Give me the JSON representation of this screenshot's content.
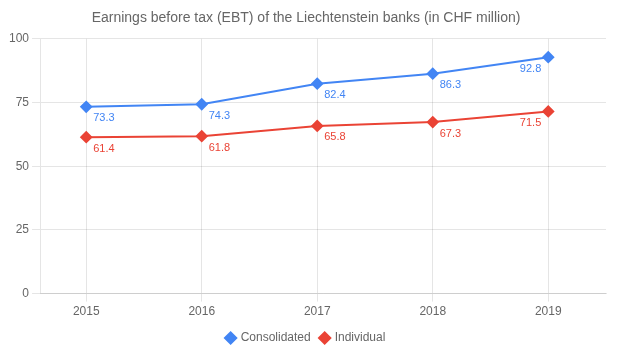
{
  "chart_data": {
    "type": "line",
    "title": "Earnings before tax (EBT) of the Liechtenstein banks (in CHF million)",
    "x": [
      2015,
      2016,
      2017,
      2018,
      2019
    ],
    "series": [
      {
        "name": "Consolidated",
        "color": "#4285F4",
        "values": [
          73.3,
          74.3,
          82.4,
          86.3,
          92.8
        ]
      },
      {
        "name": "Individual",
        "color": "#EA4335",
        "values": [
          61.4,
          61.8,
          65.8,
          67.3,
          71.5
        ]
      }
    ],
    "xlim": [
      2014.6,
      2019.5
    ],
    "xticks": [
      2015,
      2016,
      2017,
      2018,
      2019
    ],
    "ylim": [
      0,
      100
    ],
    "yticks": [
      0,
      25,
      50,
      75,
      100
    ],
    "grid": true,
    "legend": "bottom",
    "marker": "diamond",
    "data_labels": true
  }
}
